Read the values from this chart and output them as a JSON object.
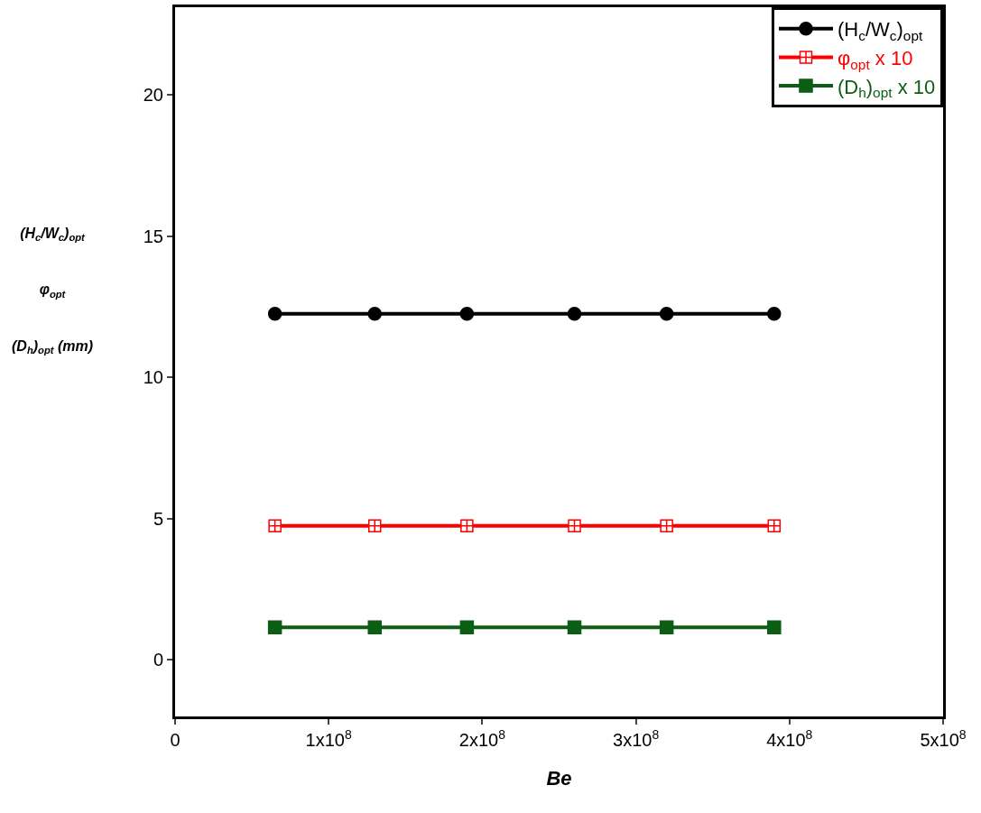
{
  "chart_data": {
    "type": "line",
    "xlabel": "Be",
    "ylabel": "(H$_{c}$/W$_{c}$)$_{opt}$\nφ$_{opt}$\n(D$_{h}$)$_{opt}$ (mm)",
    "x": [
      65000000,
      130000000,
      190000000,
      260000000,
      320000000,
      390000000
    ],
    "series": [
      {
        "name": "(H$_{c}$/W$_{c}$)$_{opt}$",
        "color": "#000000",
        "marker": "circle",
        "values": [
          12.25,
          12.25,
          12.25,
          12.25,
          12.25,
          12.25
        ]
      },
      {
        "name": "φ$_{opt}$ x 10",
        "color": "#ff0000",
        "marker": "cross",
        "values": [
          4.75,
          4.75,
          4.75,
          4.75,
          4.75,
          4.75
        ]
      },
      {
        "name": "(D$_{h}$)$_{opt}$ x 10",
        "color": "#0b5e14",
        "marker": "square",
        "values": [
          1.15,
          1.15,
          1.15,
          1.15,
          1.15,
          1.15
        ]
      }
    ],
    "xlim": [
      0,
      500000000
    ],
    "xticks": [
      0,
      {
        "value": 100000000,
        "label": "1x10$^{8}$"
      },
      {
        "value": 200000000,
        "label": "2x10$^{8}$"
      },
      {
        "value": 300000000,
        "label": "3x10$^{8}$"
      },
      {
        "value": 400000000,
        "label": "4x10$^{8}$"
      },
      {
        "value": 500000000,
        "label": "5x10$^{8}$"
      }
    ],
    "ylim": [
      -2,
      23.1
    ],
    "yticks": [
      0,
      5,
      10,
      15,
      20
    ],
    "grid": false,
    "legend": "top right",
    "line_style": "solid"
  }
}
